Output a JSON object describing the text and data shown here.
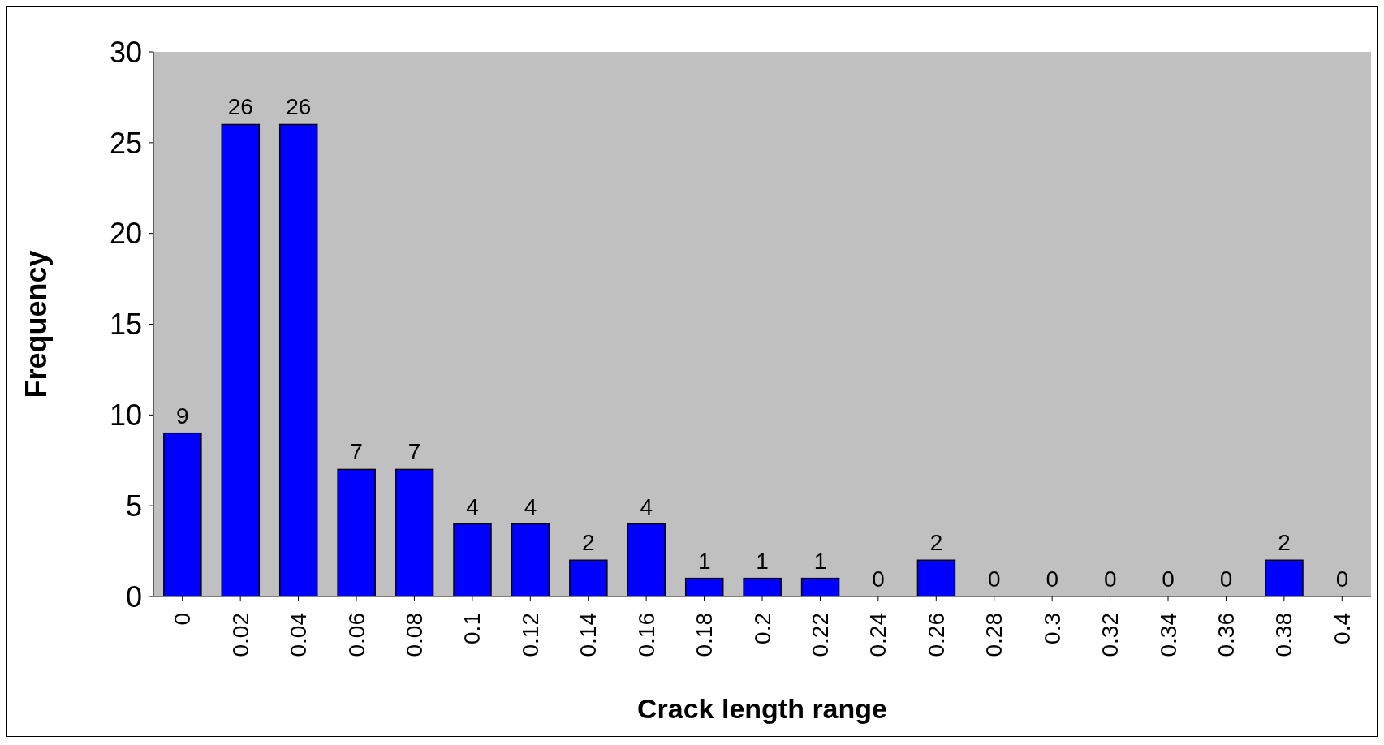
{
  "chart_data": {
    "type": "bar",
    "xlabel": "Crack length range",
    "ylabel": "Frequency",
    "categories": [
      "0",
      "0.02",
      "0.04",
      "0.06",
      "0.08",
      "0.1",
      "0.12",
      "0.14",
      "0.16",
      "0.18",
      "0.2",
      "0.22",
      "0.24",
      "0.26",
      "0.28",
      "0.3",
      "0.32",
      "0.34",
      "0.36",
      "0.38",
      "0.4"
    ],
    "values": [
      9,
      26,
      26,
      7,
      7,
      4,
      4,
      2,
      4,
      1,
      1,
      1,
      0,
      2,
      0,
      0,
      0,
      0,
      0,
      2,
      0
    ],
    "color": "#0000ff",
    "ylim": [
      0,
      30
    ],
    "yticks": [
      0,
      5,
      10,
      15,
      20,
      25,
      30
    ],
    "grid": false,
    "legend": false,
    "data_labels": true
  }
}
